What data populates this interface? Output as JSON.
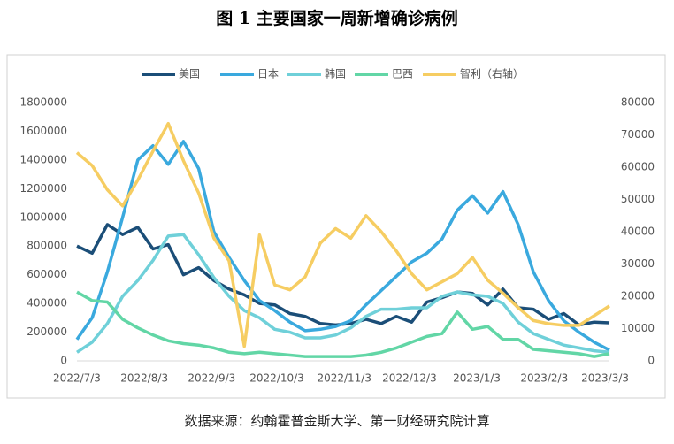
{
  "chart_data": {
    "type": "line",
    "title": "图 1 主要国家一周新增确诊病例",
    "source": "数据来源：约翰霍普金斯大学、第一财经研究院计算",
    "x": [
      "2022/7/3",
      "2022/7/10",
      "2022/7/17",
      "2022/7/24",
      "2022/7/31",
      "2022/8/7",
      "2022/8/14",
      "2022/8/21",
      "2022/8/28",
      "2022/9/4",
      "2022/9/11",
      "2022/9/18",
      "2022/9/25",
      "2022/10/2",
      "2022/10/9",
      "2022/10/16",
      "2022/10/23",
      "2022/10/30",
      "2022/11/6",
      "2022/11/13",
      "2022/11/20",
      "2022/11/27",
      "2022/12/4",
      "2022/12/11",
      "2022/12/18",
      "2022/12/25",
      "2023/1/1",
      "2023/1/8",
      "2023/1/15",
      "2023/1/22",
      "2023/1/29",
      "2023/2/5",
      "2023/2/12",
      "2023/2/19",
      "2023/2/26",
      "2023/3/5"
    ],
    "xlim": [
      "2022/7/3",
      "2023/3/5"
    ],
    "xticks": [
      "2022/7/3",
      "2022/8/3",
      "2022/9/3",
      "2022/10/3",
      "2022/11/3",
      "2022/12/3",
      "2023/1/3",
      "2023/2/3",
      "2023/3/3"
    ],
    "ylim": [
      0,
      1800000
    ],
    "yticks": [
      0,
      200000,
      400000,
      600000,
      800000,
      1000000,
      1200000,
      1400000,
      1600000,
      1800000
    ],
    "y2lim": [
      0,
      80000
    ],
    "y2ticks": [
      0,
      10000,
      20000,
      30000,
      40000,
      50000,
      60000,
      70000,
      80000
    ],
    "series": [
      {
        "name": "美国",
        "color": "#1b4e78",
        "values": [
          800000,
          750000,
          950000,
          880000,
          930000,
          780000,
          810000,
          600000,
          650000,
          560000,
          500000,
          460000,
          400000,
          390000,
          330000,
          310000,
          260000,
          250000,
          260000,
          290000,
          260000,
          310000,
          270000,
          410000,
          440000,
          480000,
          470000,
          390000,
          500000,
          370000,
          360000,
          290000,
          330000,
          250000,
          270000,
          265000
        ]
      },
      {
        "name": "日本",
        "color": "#3aa9de",
        "values": [
          150000,
          300000,
          620000,
          1000000,
          1400000,
          1500000,
          1370000,
          1530000,
          1340000,
          900000,
          720000,
          560000,
          420000,
          350000,
          270000,
          210000,
          220000,
          240000,
          280000,
          390000,
          490000,
          590000,
          690000,
          750000,
          850000,
          1050000,
          1150000,
          1030000,
          1180000,
          950000,
          620000,
          420000,
          280000,
          200000,
          130000,
          75000
        ]
      },
      {
        "name": "韩国",
        "color": "#6fd0d9",
        "values": [
          60000,
          130000,
          260000,
          450000,
          560000,
          700000,
          870000,
          880000,
          740000,
          580000,
          450000,
          350000,
          300000,
          220000,
          200000,
          160000,
          160000,
          180000,
          230000,
          310000,
          360000,
          360000,
          370000,
          370000,
          450000,
          480000,
          460000,
          450000,
          400000,
          270000,
          190000,
          150000,
          110000,
          90000,
          70000,
          60000
        ]
      },
      {
        "name": "巴西",
        "color": "#62d6a6",
        "values": [
          480000,
          420000,
          410000,
          290000,
          230000,
          180000,
          140000,
          120000,
          110000,
          90000,
          60000,
          50000,
          60000,
          50000,
          40000,
          30000,
          30000,
          30000,
          30000,
          40000,
          60000,
          90000,
          130000,
          170000,
          190000,
          340000,
          220000,
          240000,
          150000,
          150000,
          80000,
          70000,
          60000,
          50000,
          30000,
          50000
        ]
      },
      {
        "name": "智利（右轴）",
        "color": "#f6cd62",
        "axis": "y2",
        "values": [
          64500,
          60500,
          53000,
          48000,
          56000,
          65000,
          73500,
          62000,
          52000,
          38000,
          31000,
          4500,
          39000,
          23500,
          22000,
          26000,
          36500,
          41000,
          38000,
          45000,
          40000,
          34000,
          27000,
          22000,
          24500,
          27000,
          32000,
          25000,
          21000,
          16500,
          12500,
          11500,
          11000,
          11000,
          14000,
          17000
        ]
      }
    ]
  }
}
